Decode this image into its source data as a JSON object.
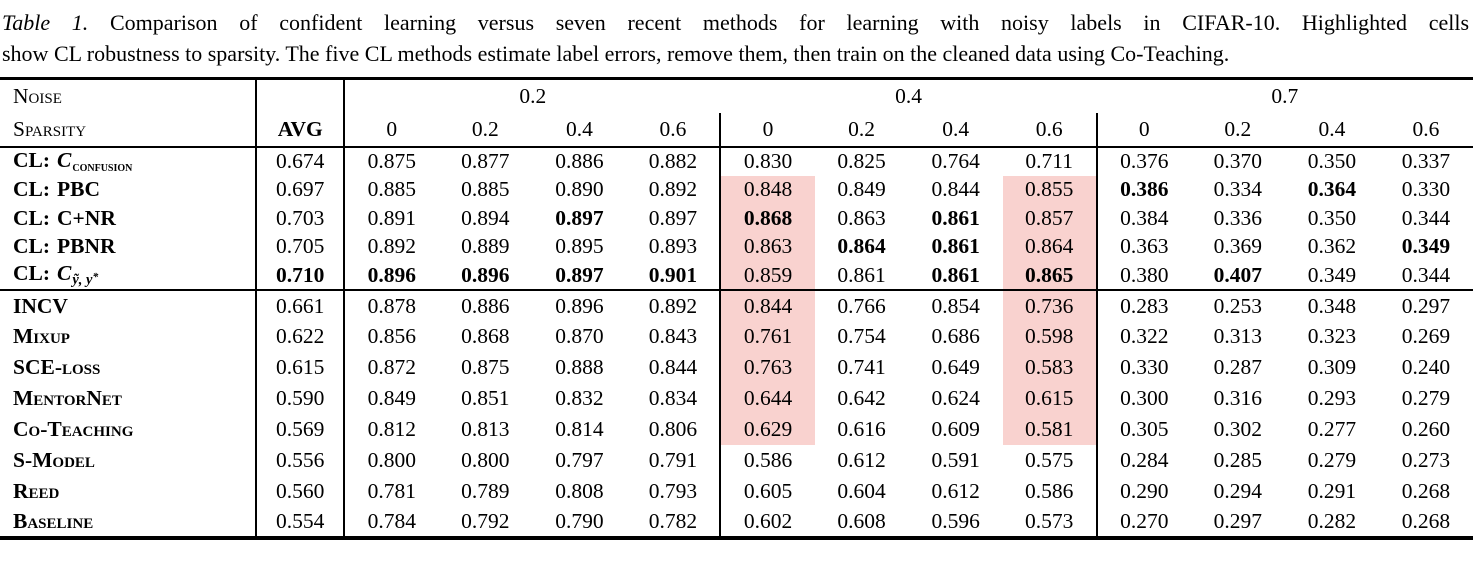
{
  "caption": {
    "label": "Table 1.",
    "line1": "Comparison of confident learning versus seven recent methods for learning with noisy labels in CIFAR-10. Highlighted cells",
    "line2": "show CL robustness to sparsity. The five CL methods estimate label errors, remove them, then train on the cleaned data using Co-Teaching."
  },
  "header": {
    "noise_label": "Noise",
    "sparsity_label": "Sparsity",
    "avg_label": "AVG",
    "noise_levels": [
      "0.2",
      "0.4",
      "0.7"
    ],
    "sparsity_levels": [
      "0",
      "0.2",
      "0.4",
      "0.6"
    ]
  },
  "colors": {
    "highlight": "#f9d2cf",
    "text": "#000000",
    "background": "#ffffff"
  },
  "chart_data": {
    "type": "table",
    "title": "Comparison of confident learning versus seven recent methods for learning with noisy labels in CIFAR-10",
    "columns": [
      "AVG",
      "0.2/0",
      "0.2/0.2",
      "0.2/0.4",
      "0.2/0.6",
      "0.4/0",
      "0.4/0.2",
      "0.4/0.4",
      "0.4/0.6",
      "0.7/0",
      "0.7/0.2",
      "0.7/0.4",
      "0.7/0.6"
    ]
  },
  "groups": [
    {
      "name": "confident-learning-methods",
      "rows": [
        {
          "label": {
            "prefix": "CL:",
            "math": "C",
            "sub": "confusion",
            "sub_style": "sc"
          },
          "avg": "0.674",
          "avg_bold": false,
          "values": [
            "0.875",
            "0.877",
            "0.886",
            "0.882",
            "0.830",
            "0.825",
            "0.764",
            "0.711",
            "0.376",
            "0.370",
            "0.350",
            "0.337"
          ],
          "bold": [
            0,
            0,
            0,
            0,
            0,
            0,
            0,
            0,
            0,
            0,
            0,
            0
          ],
          "hl": [
            0,
            0,
            0,
            0,
            0,
            0,
            0,
            0,
            0,
            0,
            0,
            0
          ]
        },
        {
          "label": {
            "prefix": "CL:",
            "name": "PBC"
          },
          "avg": "0.697",
          "avg_bold": false,
          "values": [
            "0.885",
            "0.885",
            "0.890",
            "0.892",
            "0.848",
            "0.849",
            "0.844",
            "0.855",
            "0.386",
            "0.334",
            "0.364",
            "0.330"
          ],
          "bold": [
            0,
            0,
            0,
            0,
            0,
            0,
            0,
            0,
            1,
            0,
            1,
            0
          ],
          "hl": [
            0,
            0,
            0,
            0,
            1,
            0,
            0,
            1,
            0,
            0,
            0,
            0
          ]
        },
        {
          "label": {
            "prefix": "CL:",
            "name": "C+NR"
          },
          "avg": "0.703",
          "avg_bold": false,
          "values": [
            "0.891",
            "0.894",
            "0.897",
            "0.897",
            "0.868",
            "0.863",
            "0.861",
            "0.857",
            "0.384",
            "0.336",
            "0.350",
            "0.344"
          ],
          "bold": [
            0,
            0,
            1,
            0,
            1,
            0,
            1,
            0,
            0,
            0,
            0,
            0
          ],
          "hl": [
            0,
            0,
            0,
            0,
            1,
            0,
            0,
            1,
            0,
            0,
            0,
            0
          ]
        },
        {
          "label": {
            "prefix": "CL:",
            "name": "PBNR"
          },
          "avg": "0.705",
          "avg_bold": false,
          "values": [
            "0.892",
            "0.889",
            "0.895",
            "0.893",
            "0.863",
            "0.864",
            "0.861",
            "0.864",
            "0.363",
            "0.369",
            "0.362",
            "0.349"
          ],
          "bold": [
            0,
            0,
            0,
            0,
            0,
            1,
            1,
            0,
            0,
            0,
            0,
            1
          ],
          "hl": [
            0,
            0,
            0,
            0,
            1,
            0,
            0,
            1,
            0,
            0,
            0,
            0
          ]
        },
        {
          "label": {
            "prefix": "CL:",
            "math": "C",
            "sub": "ỹ, y*",
            "sub_style": "it"
          },
          "avg": "0.710",
          "avg_bold": true,
          "values": [
            "0.896",
            "0.896",
            "0.897",
            "0.901",
            "0.859",
            "0.861",
            "0.861",
            "0.865",
            "0.380",
            "0.407",
            "0.349",
            "0.344"
          ],
          "bold": [
            1,
            1,
            1,
            1,
            0,
            0,
            1,
            1,
            0,
            1,
            0,
            0
          ],
          "hl": [
            0,
            0,
            0,
            0,
            1,
            0,
            0,
            1,
            0,
            0,
            0,
            0
          ]
        }
      ]
    },
    {
      "name": "baseline-methods",
      "rows": [
        {
          "label": {
            "name": "INCV"
          },
          "avg": "0.661",
          "avg_bold": false,
          "values": [
            "0.878",
            "0.886",
            "0.896",
            "0.892",
            "0.844",
            "0.766",
            "0.854",
            "0.736",
            "0.283",
            "0.253",
            "0.348",
            "0.297"
          ],
          "bold": [
            0,
            0,
            0,
            0,
            0,
            0,
            0,
            0,
            0,
            0,
            0,
            0
          ],
          "hl": [
            0,
            0,
            0,
            0,
            1,
            0,
            0,
            1,
            0,
            0,
            0,
            0
          ]
        },
        {
          "label": {
            "name": "Mixup"
          },
          "avg": "0.622",
          "avg_bold": false,
          "values": [
            "0.856",
            "0.868",
            "0.870",
            "0.843",
            "0.761",
            "0.754",
            "0.686",
            "0.598",
            "0.322",
            "0.313",
            "0.323",
            "0.269"
          ],
          "bold": [
            0,
            0,
            0,
            0,
            0,
            0,
            0,
            0,
            0,
            0,
            0,
            0
          ],
          "hl": [
            0,
            0,
            0,
            0,
            1,
            0,
            0,
            1,
            0,
            0,
            0,
            0
          ]
        },
        {
          "label": {
            "name": "SCE-loss"
          },
          "avg": "0.615",
          "avg_bold": false,
          "values": [
            "0.872",
            "0.875",
            "0.888",
            "0.844",
            "0.763",
            "0.741",
            "0.649",
            "0.583",
            "0.330",
            "0.287",
            "0.309",
            "0.240"
          ],
          "bold": [
            0,
            0,
            0,
            0,
            0,
            0,
            0,
            0,
            0,
            0,
            0,
            0
          ],
          "hl": [
            0,
            0,
            0,
            0,
            1,
            0,
            0,
            1,
            0,
            0,
            0,
            0
          ]
        },
        {
          "label": {
            "name": "MentorNet"
          },
          "avg": "0.590",
          "avg_bold": false,
          "values": [
            "0.849",
            "0.851",
            "0.832",
            "0.834",
            "0.644",
            "0.642",
            "0.624",
            "0.615",
            "0.300",
            "0.316",
            "0.293",
            "0.279"
          ],
          "bold": [
            0,
            0,
            0,
            0,
            0,
            0,
            0,
            0,
            0,
            0,
            0,
            0
          ],
          "hl": [
            0,
            0,
            0,
            0,
            1,
            0,
            0,
            1,
            0,
            0,
            0,
            0
          ]
        },
        {
          "label": {
            "name": "Co-Teaching"
          },
          "avg": "0.569",
          "avg_bold": false,
          "values": [
            "0.812",
            "0.813",
            "0.814",
            "0.806",
            "0.629",
            "0.616",
            "0.609",
            "0.581",
            "0.305",
            "0.302",
            "0.277",
            "0.260"
          ],
          "bold": [
            0,
            0,
            0,
            0,
            0,
            0,
            0,
            0,
            0,
            0,
            0,
            0
          ],
          "hl": [
            0,
            0,
            0,
            0,
            1,
            0,
            0,
            1,
            0,
            0,
            0,
            0
          ]
        },
        {
          "label": {
            "name": "S-Model"
          },
          "avg": "0.556",
          "avg_bold": false,
          "values": [
            "0.800",
            "0.800",
            "0.797",
            "0.791",
            "0.586",
            "0.612",
            "0.591",
            "0.575",
            "0.284",
            "0.285",
            "0.279",
            "0.273"
          ],
          "bold": [
            0,
            0,
            0,
            0,
            0,
            0,
            0,
            0,
            0,
            0,
            0,
            0
          ],
          "hl": [
            0,
            0,
            0,
            0,
            0,
            0,
            0,
            0,
            0,
            0,
            0,
            0
          ]
        },
        {
          "label": {
            "name": "Reed"
          },
          "avg": "0.560",
          "avg_bold": false,
          "values": [
            "0.781",
            "0.789",
            "0.808",
            "0.793",
            "0.605",
            "0.604",
            "0.612",
            "0.586",
            "0.290",
            "0.294",
            "0.291",
            "0.268"
          ],
          "bold": [
            0,
            0,
            0,
            0,
            0,
            0,
            0,
            0,
            0,
            0,
            0,
            0
          ],
          "hl": [
            0,
            0,
            0,
            0,
            0,
            0,
            0,
            0,
            0,
            0,
            0,
            0
          ]
        },
        {
          "label": {
            "name": "Baseline"
          },
          "avg": "0.554",
          "avg_bold": false,
          "values": [
            "0.784",
            "0.792",
            "0.790",
            "0.782",
            "0.602",
            "0.608",
            "0.596",
            "0.573",
            "0.270",
            "0.297",
            "0.282",
            "0.268"
          ],
          "bold": [
            0,
            0,
            0,
            0,
            0,
            0,
            0,
            0,
            0,
            0,
            0,
            0
          ],
          "hl": [
            0,
            0,
            0,
            0,
            0,
            0,
            0,
            0,
            0,
            0,
            0,
            0
          ]
        }
      ]
    }
  ]
}
